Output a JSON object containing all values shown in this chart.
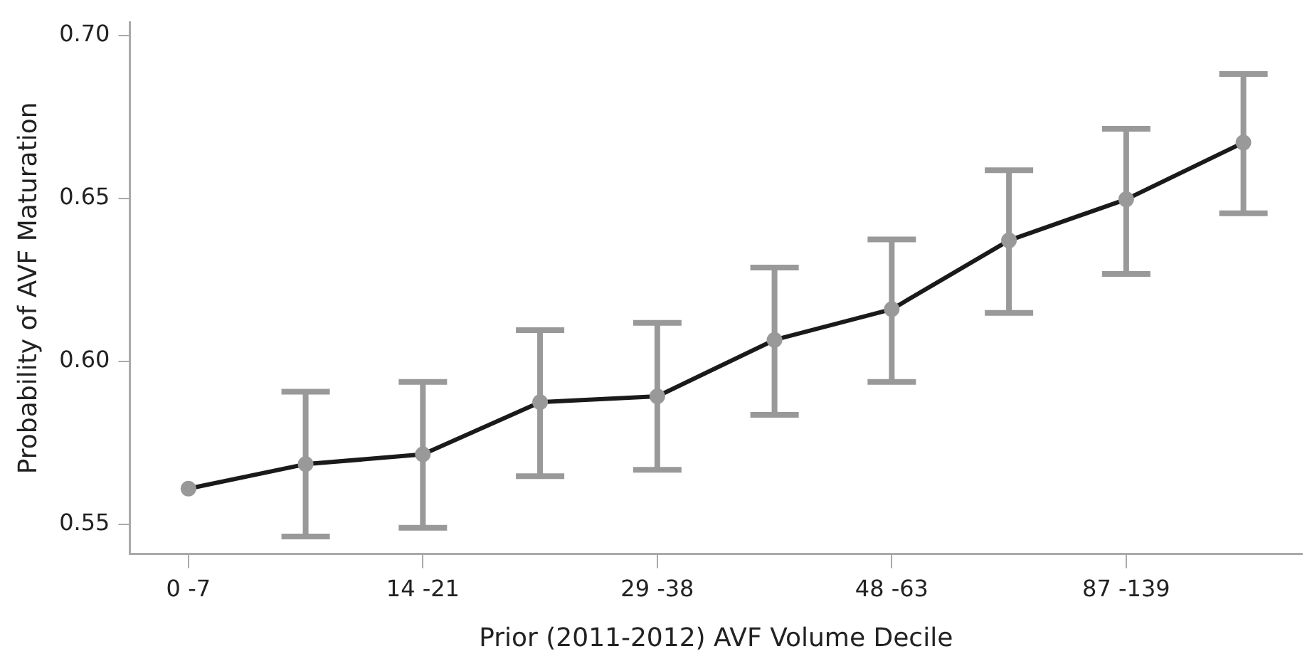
{
  "chart_data": {
    "type": "line",
    "xlabel": "Prior (2011-2012) AVF Volume Decile",
    "ylabel": "Probability of AVF Maturation",
    "categories": [
      "0 -7",
      null,
      "14 -21",
      null,
      "29 -38",
      null,
      "48 -63",
      null,
      "87 -139",
      null
    ],
    "series": [
      {
        "color": "#1a1a1a",
        "values": [
          0.561,
          0.5685,
          0.5715,
          0.5875,
          0.5893,
          0.6066,
          0.616,
          0.6371,
          0.6497,
          0.6671
        ],
        "errors": [
          null,
          [
            0.5463,
            0.5907
          ],
          [
            0.549,
            0.5937
          ],
          [
            0.5648,
            0.6096
          ],
          [
            0.5668,
            0.6118
          ],
          [
            0.5836,
            0.6288
          ],
          [
            0.5937,
            0.6374
          ],
          [
            0.6149,
            0.6586
          ],
          [
            0.6268,
            0.6713
          ],
          [
            0.6454,
            0.6881
          ]
        ]
      }
    ],
    "ylim": [
      0.541,
      0.704
    ],
    "yticks": [
      0.55,
      {
        "value": 0.6,
        "label": "0.60"
      },
      0.65,
      {
        "value": 0.7,
        "label": "0.70"
      }
    ],
    "marker": "circle",
    "line_style": "solid",
    "grid": false,
    "legend": false
  }
}
